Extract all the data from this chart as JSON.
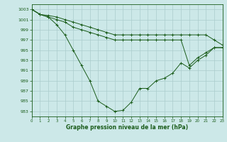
{
  "bg_color": "#cce8e8",
  "grid_color": "#aacccc",
  "line_color": "#1a5c1a",
  "marker_color": "#1a5c1a",
  "title": "Graphe pression niveau de la mer (hPa)",
  "ylim": [
    982,
    1004
  ],
  "xlim": [
    0,
    23
  ],
  "yticks": [
    983,
    985,
    987,
    989,
    991,
    993,
    995,
    997,
    999,
    1001,
    1003
  ],
  "xticks": [
    0,
    1,
    2,
    3,
    4,
    5,
    6,
    7,
    8,
    9,
    10,
    11,
    12,
    13,
    14,
    15,
    16,
    17,
    18,
    19,
    20,
    21,
    22,
    23
  ],
  "series": [
    {
      "x": [
        0,
        1,
        2,
        3,
        4,
        5,
        6,
        7,
        8,
        9,
        10,
        11,
        12,
        13,
        14,
        15,
        16,
        17,
        18,
        19,
        20,
        21,
        22,
        23
      ],
      "y": [
        1003,
        1002,
        1001.5,
        1000,
        998,
        995,
        992,
        989,
        985,
        984,
        983,
        983.2,
        984.8,
        987.5,
        987.5,
        989,
        989.5,
        990.5,
        992.5,
        991.5,
        993,
        994,
        995.5,
        995.5
      ]
    },
    {
      "x": [
        0,
        1,
        2,
        3,
        4,
        5,
        6,
        7,
        8,
        9,
        10,
        11,
        12,
        13,
        14,
        15,
        16,
        17,
        18,
        19,
        20,
        21,
        22,
        23
      ],
      "y": [
        1003,
        1002,
        1001.5,
        1001,
        1000.5,
        999.5,
        999,
        998.5,
        998,
        997.5,
        997,
        997,
        997,
        997,
        997,
        997,
        997,
        997,
        997,
        992,
        993.5,
        994.5,
        995.5,
        995.5
      ]
    },
    {
      "x": [
        0,
        1,
        2,
        3,
        4,
        5,
        6,
        7,
        8,
        9,
        10,
        11,
        12,
        13,
        14,
        15,
        16,
        17,
        18,
        19,
        20,
        21,
        22,
        23
      ],
      "y": [
        1003,
        1002,
        1001.8,
        1001.5,
        1001,
        1000.5,
        1000,
        999.5,
        999,
        998.5,
        998,
        998,
        998,
        998,
        998,
        998,
        998,
        998,
        998,
        998,
        998,
        998,
        997,
        996
      ]
    }
  ]
}
